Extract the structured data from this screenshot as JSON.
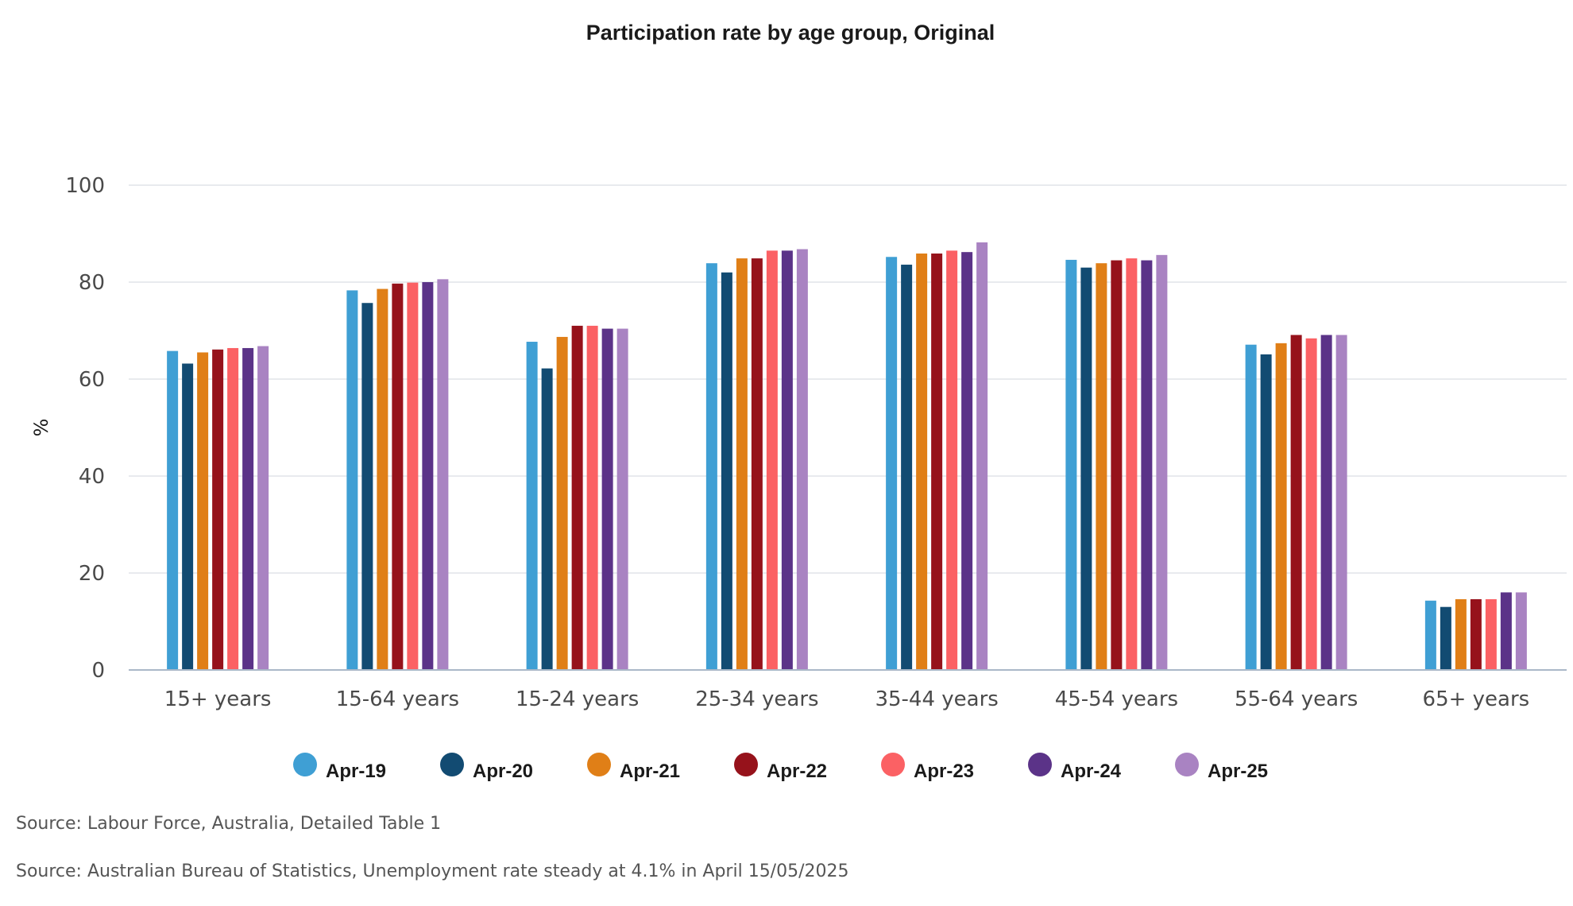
{
  "chart_data": {
    "type": "bar",
    "title": "Participation rate by age group, Original",
    "xlabel": "",
    "ylabel": "%",
    "ylim": [
      0,
      100
    ],
    "yticks": [
      0,
      20,
      40,
      60,
      80,
      100
    ],
    "grid": true,
    "legend_position": "bottom",
    "categories": [
      "15+ years",
      "15-64 years",
      "15-24 years",
      "25-34 years",
      "35-44 years",
      "45-54 years",
      "55-64 years",
      "65+ years"
    ],
    "series": [
      {
        "name": "Apr-19",
        "color": "#3f9fd4",
        "values": [
          65.8,
          78.3,
          67.7,
          83.9,
          85.2,
          84.6,
          67.1,
          14.3
        ]
      },
      {
        "name": "Apr-20",
        "color": "#124b72",
        "values": [
          63.2,
          75.7,
          62.2,
          82.0,
          83.6,
          83.0,
          65.1,
          13.0
        ]
      },
      {
        "name": "Apr-21",
        "color": "#e07f17",
        "values": [
          65.5,
          78.6,
          68.7,
          84.9,
          85.9,
          83.9,
          67.4,
          14.6
        ]
      },
      {
        "name": "Apr-22",
        "color": "#96121b",
        "values": [
          66.1,
          79.7,
          71.0,
          84.9,
          85.9,
          84.5,
          69.1,
          14.6
        ]
      },
      {
        "name": "Apr-23",
        "color": "#fb6164",
        "values": [
          66.4,
          79.9,
          71.0,
          86.5,
          86.5,
          84.9,
          68.4,
          14.6
        ]
      },
      {
        "name": "Apr-24",
        "color": "#5b3388",
        "values": [
          66.4,
          80.0,
          70.4,
          86.5,
          86.2,
          84.5,
          69.1,
          16.0
        ]
      },
      {
        "name": "Apr-25",
        "color": "#a983c2",
        "values": [
          66.8,
          80.6,
          70.4,
          86.8,
          88.2,
          85.6,
          69.1,
          16.0
        ]
      }
    ]
  },
  "sources": [
    "Source: Labour Force, Australia, Detailed Table 1",
    "Source: Australian Bureau of Statistics, Unemployment rate steady at 4.1% in April 15/05/2025"
  ]
}
